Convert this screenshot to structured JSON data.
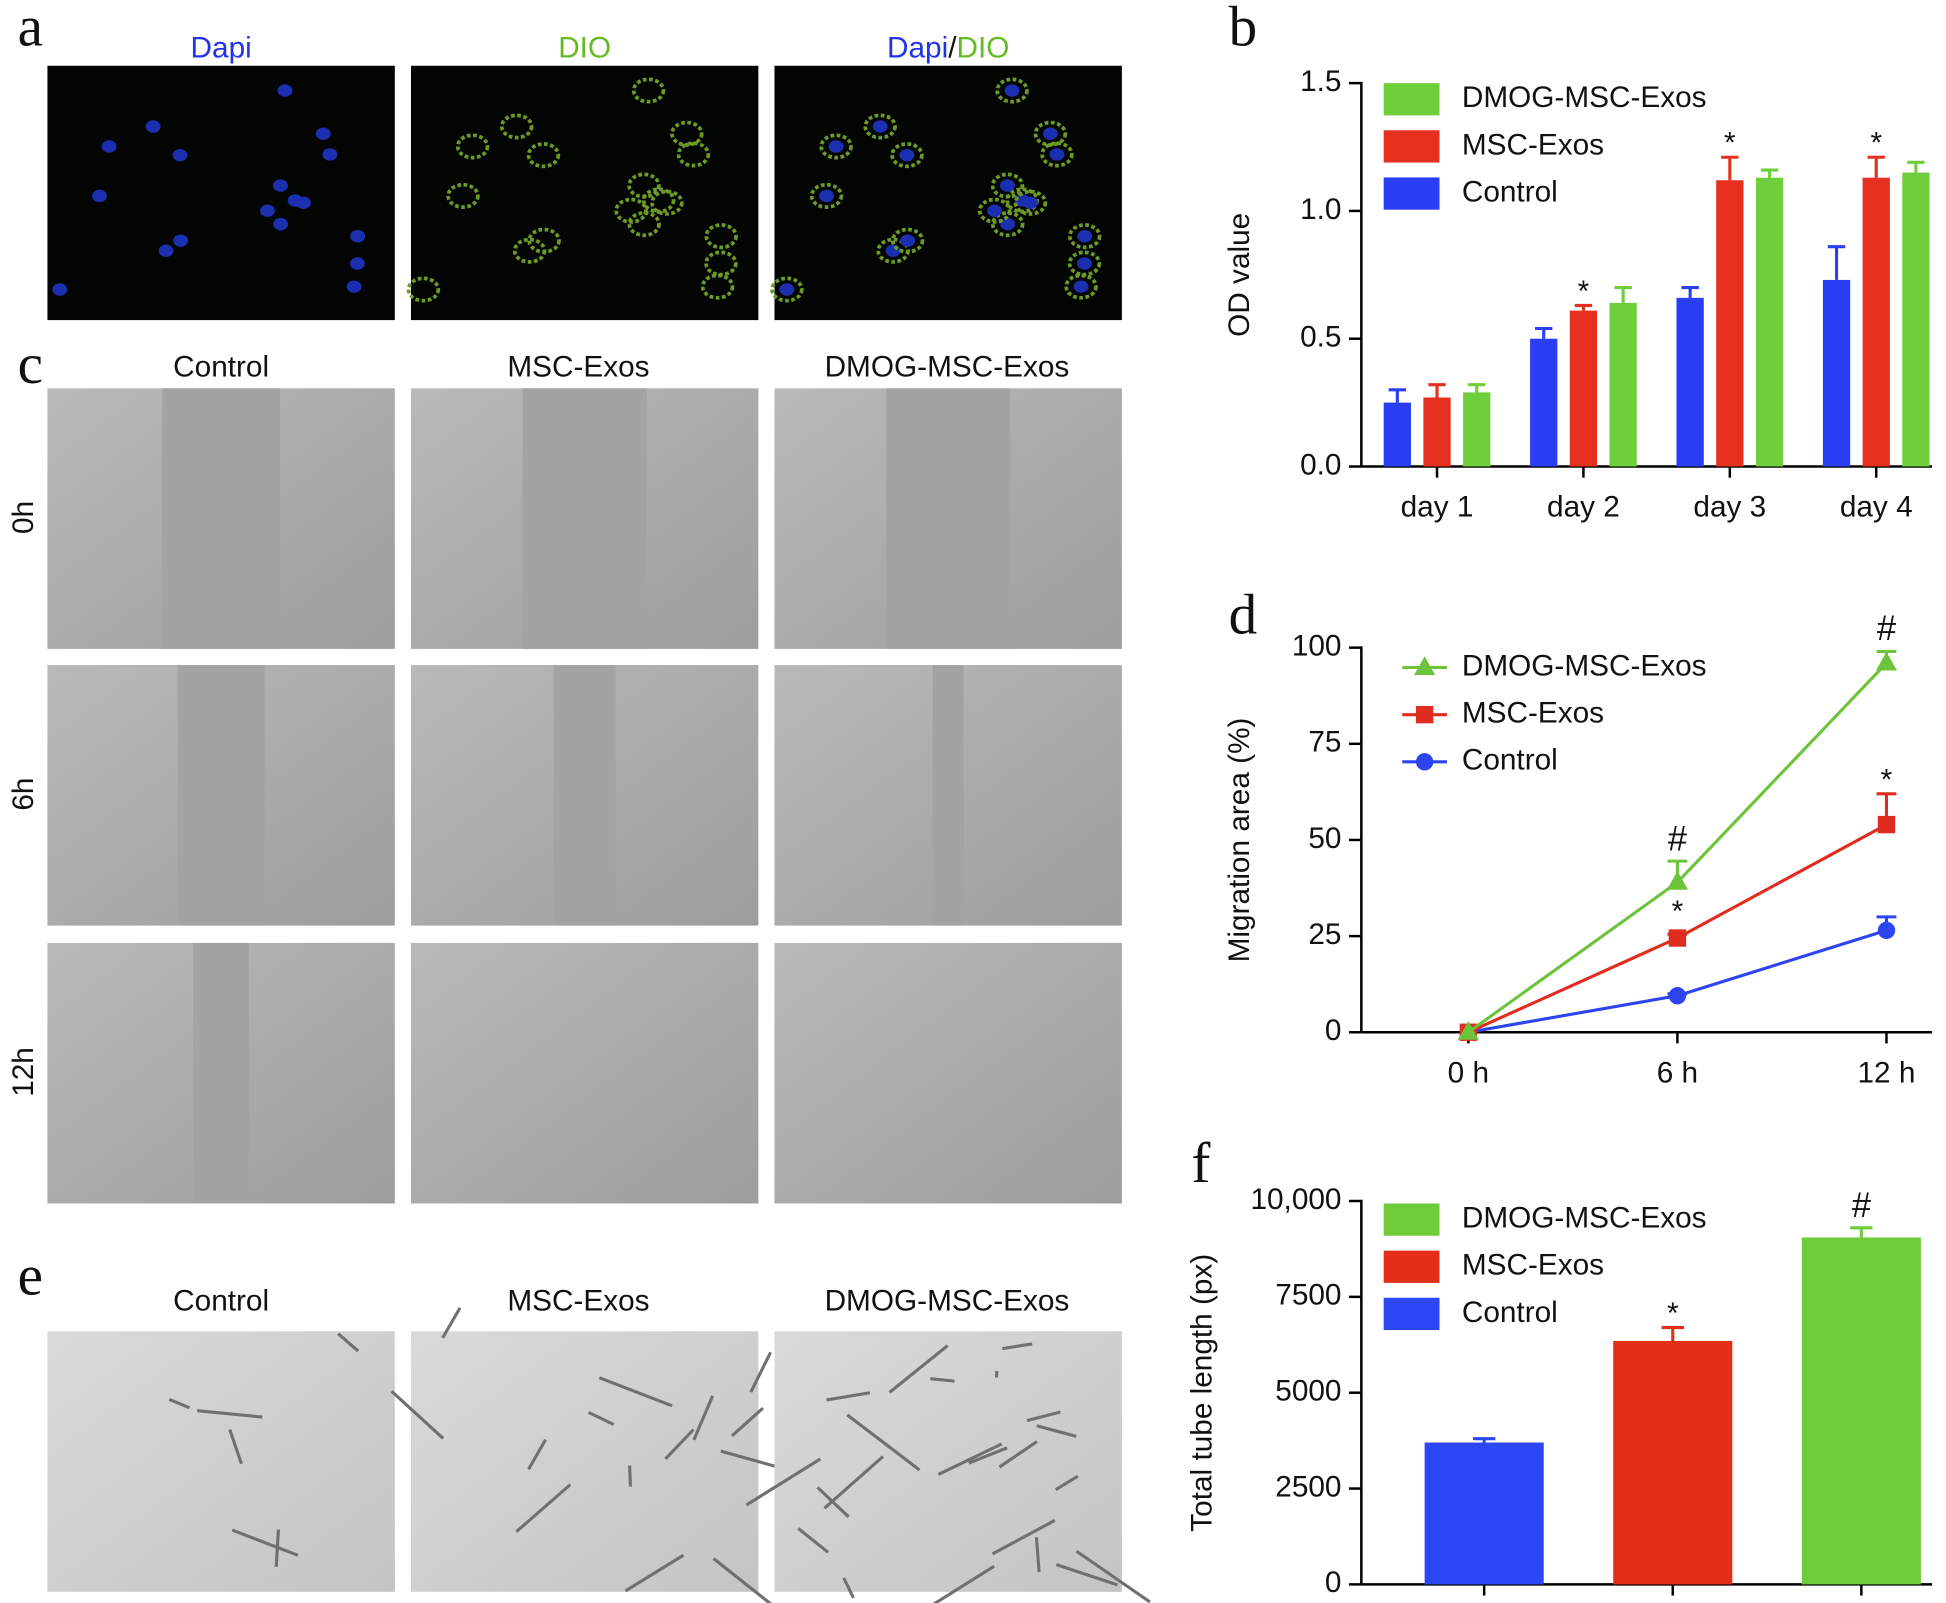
{
  "figure": {
    "panel_a": {
      "letter": "a",
      "titles": [
        "Dapi",
        "DIO"
      ],
      "merged_title": [
        "Dapi",
        "/",
        "DIO"
      ]
    },
    "panel_c": {
      "letter": "c",
      "columns": [
        "Control",
        "MSC-Exos",
        "DMOG-MSC-Exos"
      ],
      "rows": [
        "0h",
        "6h",
        "12h"
      ]
    },
    "panel_e": {
      "letter": "e",
      "columns": [
        "Control",
        "MSC-Exos",
        "DMOG-MSC-Exos"
      ]
    }
  },
  "chart_data": [
    {
      "panel_label": "b",
      "type": "bar",
      "ylabel": "OD value",
      "categories": [
        "day 1",
        "day 2",
        "day 3",
        "day 4"
      ],
      "series": [
        {
          "name": "Control",
          "color": "#2a3ff5",
          "values": [
            0.25,
            0.5,
            0.66,
            0.73
          ],
          "errors": [
            0.05,
            0.04,
            0.04,
            0.13
          ],
          "value_annotations": [
            null,
            null,
            null,
            null
          ]
        },
        {
          "name": "MSC-Exos",
          "color": "#e5301f",
          "values": [
            0.27,
            0.61,
            1.12,
            1.13
          ],
          "errors": [
            0.05,
            0.02,
            0.09,
            0.08
          ],
          "value_annotations": [
            null,
            "*",
            "*",
            "*"
          ]
        },
        {
          "name": "DMOG-MSC-Exos",
          "color": "#6fcf3a",
          "values": [
            0.29,
            0.64,
            1.13,
            1.15
          ],
          "errors": [
            0.03,
            0.06,
            0.03,
            0.04
          ],
          "value_annotations": [
            null,
            null,
            null,
            null
          ]
        }
      ],
      "ylim": [
        0,
        1.5
      ],
      "yticks": [
        {
          "value": 0,
          "label": "0.0"
        },
        0.5,
        {
          "value": 1,
          "label": "1.0"
        },
        1.5
      ],
      "legend": "upper-left"
    },
    {
      "panel_label": "d",
      "type": "line",
      "ylabel": "Migration area (%)",
      "categories": [
        "0 h",
        "6 h",
        "12 h"
      ],
      "series": [
        {
          "name": "Control",
          "color": "#2d45f0",
          "marker": "circle",
          "values": [
            0,
            9.5,
            26.5
          ],
          "errors": [
            0,
            0.5,
            3.5
          ],
          "value_annotations": [
            null,
            null,
            null
          ]
        },
        {
          "name": "MSC-Exos",
          "color": "#e02d1f",
          "marker": "square",
          "values": [
            0,
            24.5,
            54
          ],
          "errors": [
            0,
            1,
            8
          ],
          "value_annotations": [
            null,
            "*",
            "*"
          ]
        },
        {
          "name": "DMOG-MSC-Exos",
          "color": "#6bc43a",
          "marker": "triangle",
          "values": [
            0,
            39,
            96
          ],
          "errors": [
            0,
            5.5,
            3
          ],
          "value_annotations": [
            null,
            "#",
            "#"
          ]
        }
      ],
      "ylim": [
        0,
        100
      ],
      "yticks": [
        0,
        25,
        50,
        75,
        100
      ],
      "legend": "upper-left"
    },
    {
      "panel_label": "f",
      "type": "bar",
      "ylabel": "Total tube length (px)",
      "categories": [
        null,
        null,
        null
      ],
      "values": [
        3700,
        6350,
        9050
      ],
      "errors": [
        100,
        350,
        250
      ],
      "value_annotations": [
        null,
        "*",
        "#"
      ],
      "colors": [
        "#2b46f2",
        "#e32f16",
        "#6fcb3a"
      ],
      "legend_names": [
        "Control",
        "MSC-Exos",
        "DMOG-MSC-Exos"
      ],
      "ylim": [
        0,
        10000
      ],
      "yticks": [
        0,
        2500,
        5000,
        7500,
        {
          "value": 10000,
          "label": "10,000"
        }
      ],
      "legend": "upper-left"
    }
  ]
}
